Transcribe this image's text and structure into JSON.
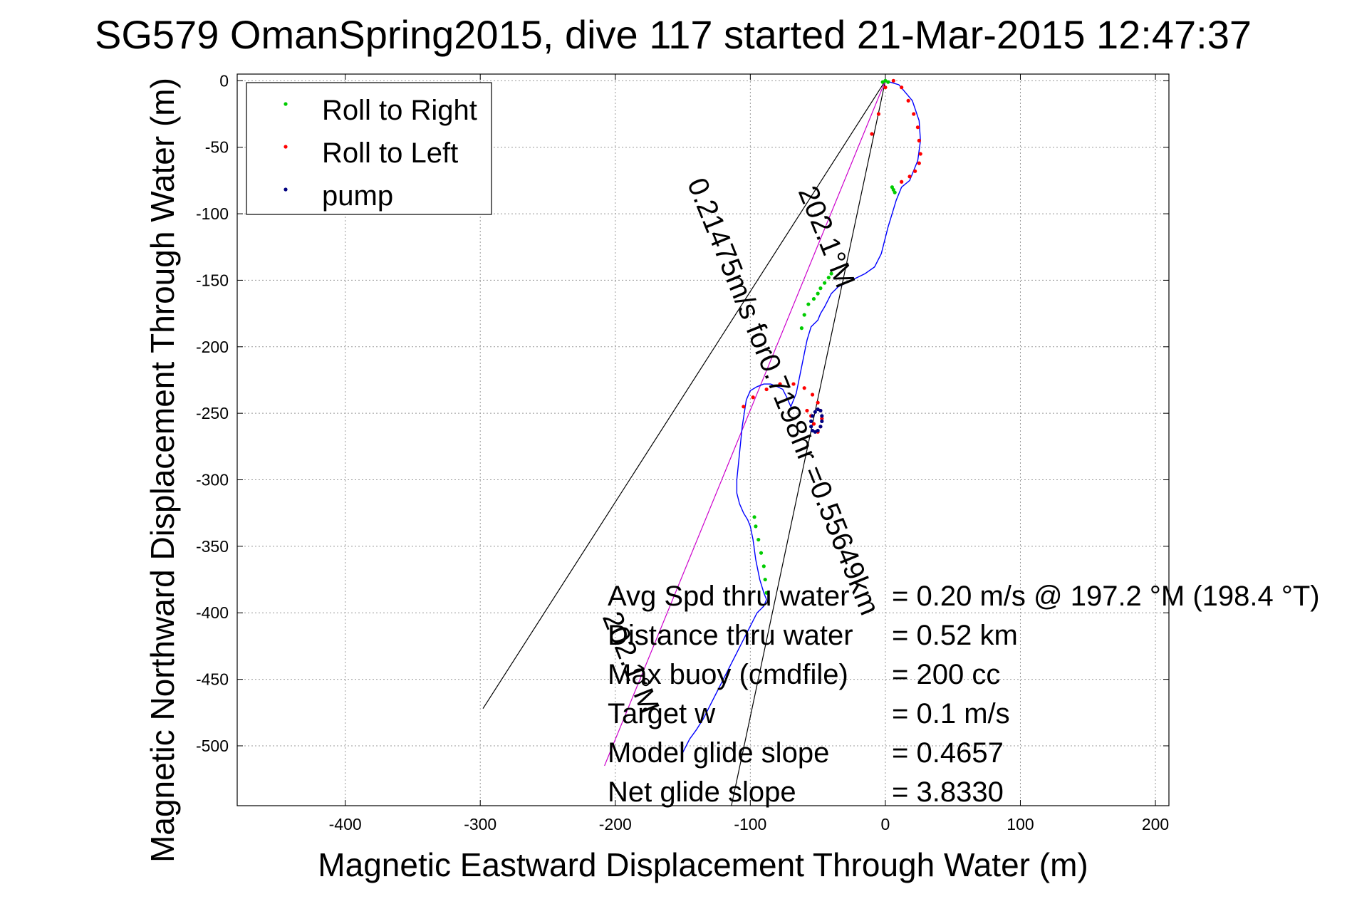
{
  "chart_data": {
    "type": "scatter",
    "title": "SG579 OmanSpring2015, dive 117 started 21-Mar-2015 12:47:37",
    "xlabel": "Magnetic Eastward Displacement Through Water (m)",
    "ylabel": "Magnetic Northward Displacement Through Water (m)",
    "xlim": [
      -480,
      210
    ],
    "ylim": [
      -545,
      5
    ],
    "xticks": [
      -400,
      -300,
      -200,
      -100,
      0,
      100,
      200
    ],
    "yticks": [
      0,
      -50,
      -100,
      -150,
      -200,
      -250,
      -300,
      -350,
      -400,
      -450,
      -500
    ],
    "grid": true,
    "legend_position": "top-left",
    "legend": [
      {
        "label": "Roll to Right",
        "color": "#00cc00"
      },
      {
        "label": "Roll to Left",
        "color": "#ff0000"
      },
      {
        "label": "pump",
        "color": "#000080"
      }
    ],
    "track_color": "#0000ff",
    "track_x": [
      0,
      10,
      20,
      25,
      26,
      24,
      18,
      12,
      8,
      5,
      2,
      -3,
      -8,
      -15,
      -25,
      -35,
      -40,
      -45,
      -48,
      -50,
      -55,
      -58,
      -60,
      -62,
      -64,
      -66,
      -68,
      -70,
      -73,
      -76,
      -80,
      -85,
      -90,
      -95,
      -100,
      -103,
      -106,
      -108,
      -110,
      -110,
      -108,
      -105,
      -102,
      -100,
      -98,
      -96,
      -93,
      -90,
      -88,
      -90,
      -95,
      -100,
      -105,
      -110,
      -115,
      -120,
      -125,
      -130,
      -135,
      -140,
      -145,
      -150
    ],
    "track_y": [
      0,
      -3,
      -15,
      -30,
      -45,
      -60,
      -75,
      -80,
      -90,
      -100,
      -110,
      -130,
      -140,
      -145,
      -150,
      -155,
      -160,
      -170,
      -175,
      -180,
      -185,
      -195,
      -205,
      -215,
      -225,
      -235,
      -240,
      -245,
      -238,
      -232,
      -230,
      -228,
      -228,
      -230,
      -233,
      -240,
      -260,
      -280,
      -300,
      -310,
      -318,
      -325,
      -330,
      -335,
      -345,
      -360,
      -375,
      -385,
      -390,
      -395,
      -400,
      -410,
      -420,
      -430,
      -440,
      -450,
      -460,
      -470,
      -480,
      -488,
      -495,
      -505
    ],
    "roll_right": [
      {
        "x": [
          -88,
          -89,
          -90,
          -92,
          -94,
          -96,
          -97
        ],
        "y": [
          -385,
          -375,
          -365,
          -355,
          -345,
          -335,
          -328
        ]
      },
      {
        "x": [
          -40,
          -42,
          -45,
          -48,
          -50,
          -53,
          -57,
          -60,
          -62
        ],
        "y": [
          -145,
          -148,
          -152,
          -156,
          -160,
          -164,
          -168,
          -176,
          -186
        ]
      },
      {
        "x": [
          5,
          6,
          7
        ],
        "y": [
          -80,
          -82,
          -84
        ]
      },
      {
        "x": [
          -2,
          0,
          2
        ],
        "y": [
          -1,
          0,
          -1
        ]
      }
    ],
    "roll_left": [
      {
        "x": [
          -10,
          -5,
          0,
          6,
          12,
          17,
          21,
          24,
          25,
          26,
          25,
          22,
          18,
          12
        ],
        "y": [
          -40,
          -25,
          -5,
          0,
          -5,
          -15,
          -25,
          -35,
          -45,
          -55,
          -62,
          -68,
          -72,
          -76
        ]
      },
      {
        "x": [
          -105,
          -98,
          -88,
          -78,
          -68,
          -60,
          -54,
          -50,
          -48,
          -47,
          -48,
          -50,
          -53,
          -55,
          -58
        ],
        "y": [
          -245,
          -238,
          -232,
          -228,
          -228,
          -231,
          -236,
          -242,
          -248,
          -254,
          -260,
          -264,
          -258,
          -252,
          -248
        ]
      }
    ],
    "pump": [
      {
        "x": [
          -48,
          -47,
          -47,
          -48,
          -50,
          -52,
          -54,
          -55,
          -55,
          -54,
          -52,
          -50
        ],
        "y": [
          -248,
          -252,
          -256,
          -260,
          -263,
          -264,
          -263,
          -260,
          -256,
          -252,
          -249,
          -247
        ]
      }
    ],
    "reference_lines": [
      {
        "color": "#000000",
        "x": [
          0,
          -298
        ],
        "y": [
          0,
          -472
        ]
      },
      {
        "color": "#000000",
        "x": [
          0,
          -114
        ],
        "y": [
          0,
          -545
        ]
      },
      {
        "color": "#cc00cc",
        "x": [
          0,
          -208
        ],
        "y": [
          0,
          -515
        ]
      }
    ],
    "annotations": [
      {
        "text": "0.21475m/s for0.7198hr =0.55649km",
        "x": -82,
        "y": -240
      },
      {
        "text": "202.1°M",
        "x": -50,
        "y": -120
      },
      {
        "text": "202.1°M",
        "x": -195,
        "y": -440
      }
    ],
    "stats": [
      {
        "label": "Avg Spd thru water",
        "value": "=  0.20 m/s @ 197.2 °M (198.4 °T)"
      },
      {
        "label": "Distance thru water",
        "value": "=  0.52 km"
      },
      {
        "label": "Max buoy (cmdfile)",
        "value": "= 200 cc"
      },
      {
        "label": "Target w",
        "value": "= 0.1 m/s"
      },
      {
        "label": "Model glide slope",
        "value": "= 0.4657"
      },
      {
        "label": "Net glide slope",
        "value": "= 3.8330"
      }
    ]
  }
}
